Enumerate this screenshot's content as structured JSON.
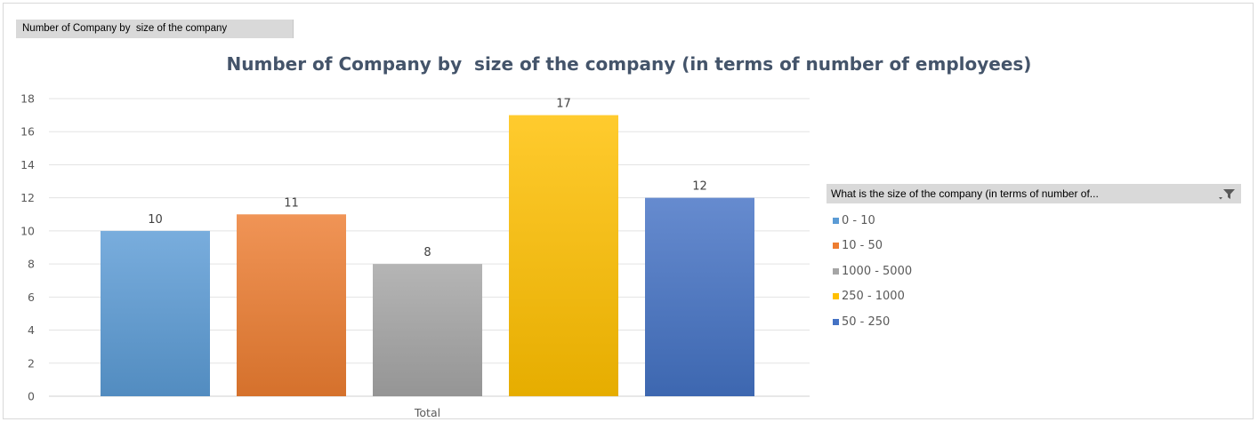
{
  "field_button": {
    "label": "Number of Company by  size of the company"
  },
  "chart_data": {
    "type": "bar",
    "title": "Number of Company by  size of the company (in terms of number of employees)",
    "categories": [
      "Total"
    ],
    "series": [
      {
        "name": "0 - 10",
        "values": [
          10
        ],
        "color": "#5b9bd5"
      },
      {
        "name": "10 - 50",
        "values": [
          11
        ],
        "color": "#ed7d31"
      },
      {
        "name": "1000 - 5000",
        "values": [
          8
        ],
        "color": "#a5a5a5"
      },
      {
        "name": "250 - 1000",
        "values": [
          17
        ],
        "color": "#ffc000"
      },
      {
        "name": "50 - 250",
        "values": [
          12
        ],
        "color": "#4472c4"
      }
    ],
    "y_ticks": [
      0,
      2,
      4,
      6,
      8,
      10,
      12,
      14,
      16,
      18
    ],
    "ylim": [
      0,
      18
    ],
    "grid": true,
    "legend": {
      "placement": "right",
      "title": "What is the size of the company (in terms of number of..."
    }
  }
}
